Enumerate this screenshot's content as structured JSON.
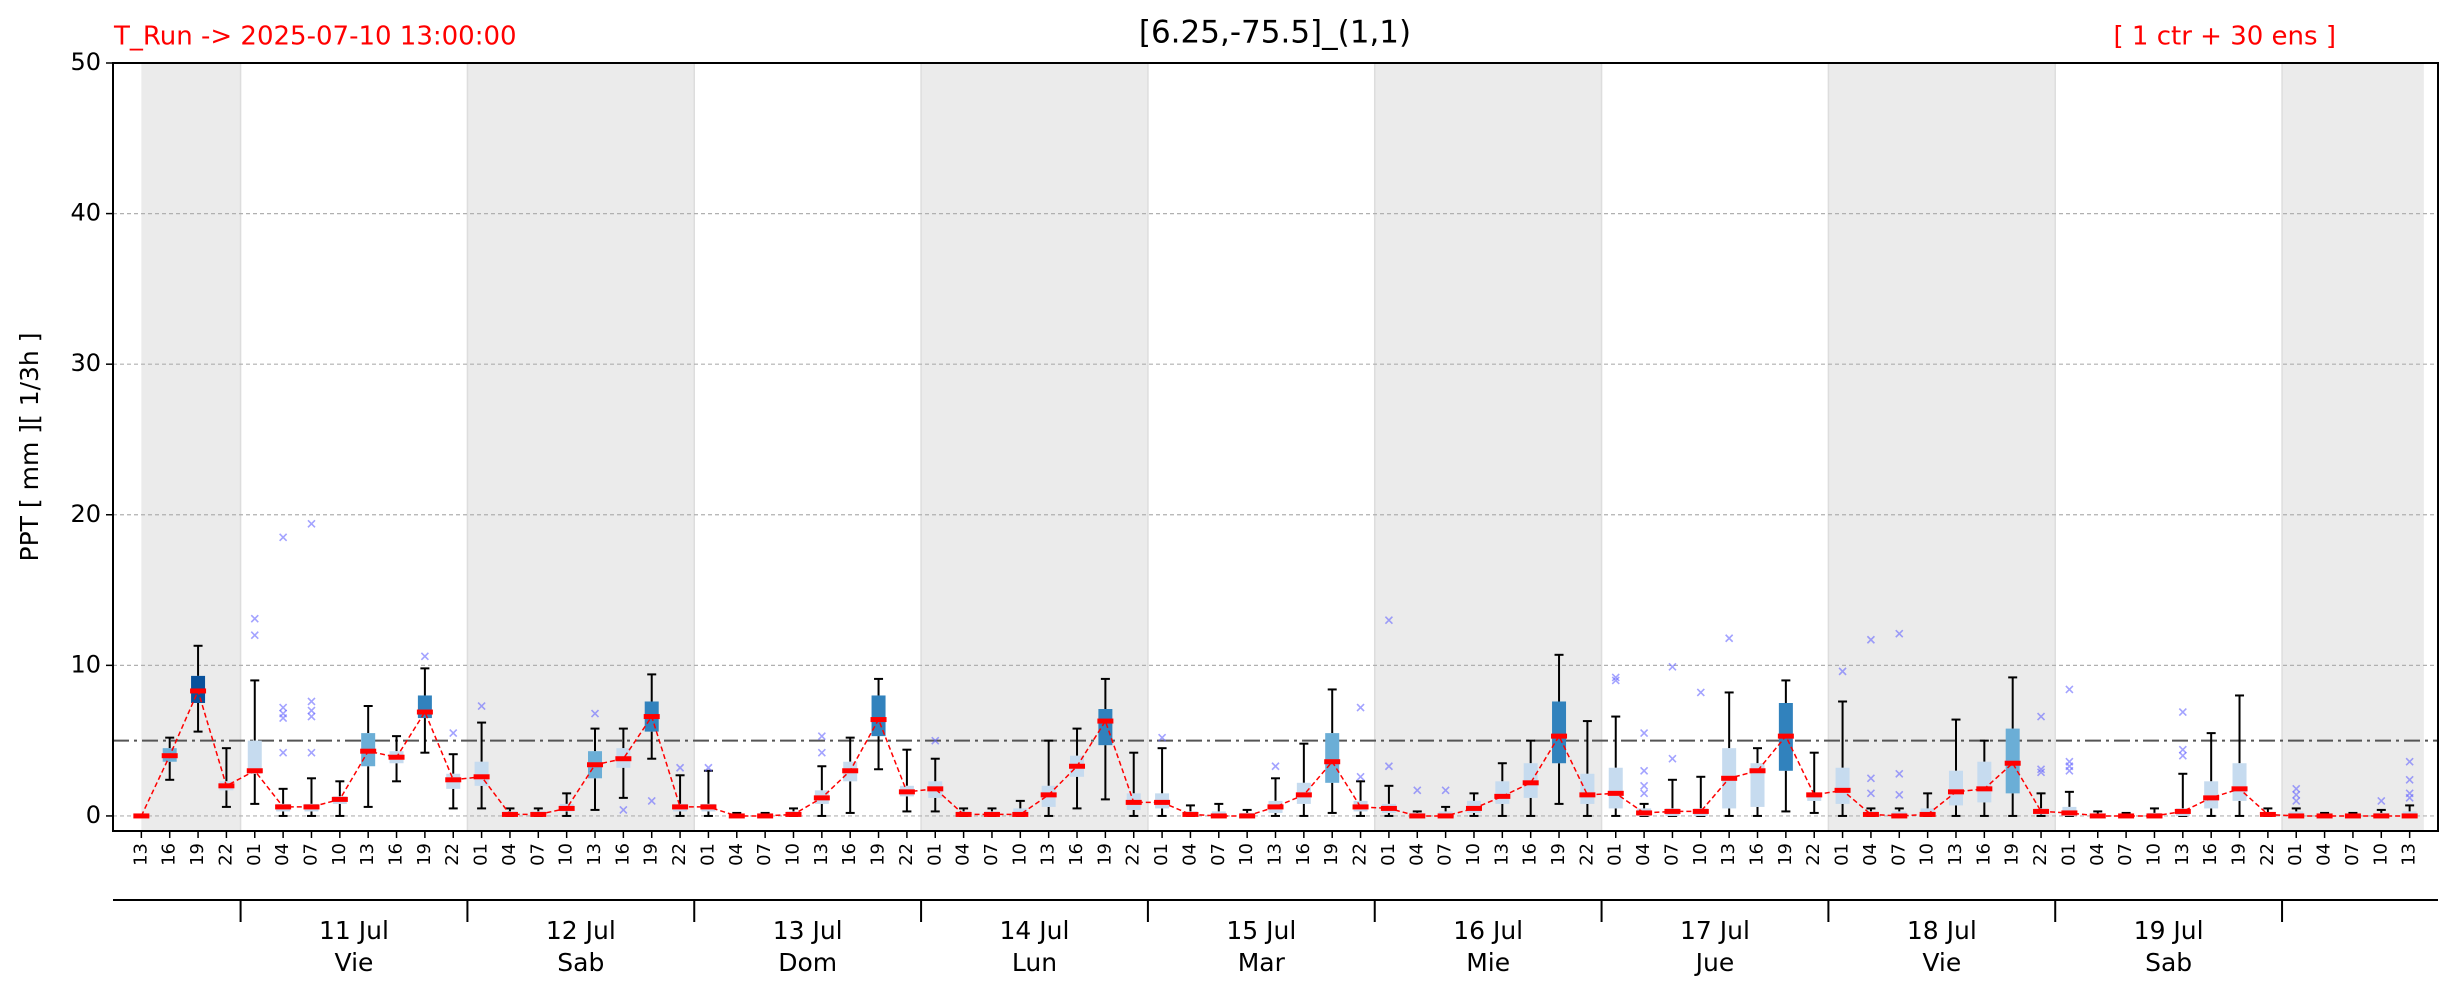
{
  "chart_data": {
    "type": "box",
    "title": "[6.25,-75.5]_(1,1)",
    "run_label": "T_Run -> 2025-07-10  13:00:00",
    "ensemble_label": "[ 1 ctr + 30 ens ]",
    "y_label": "PPT  [ mm ][ 1/3h ]",
    "ylim": [
      -1,
      50
    ],
    "yticks": [
      0,
      10,
      20,
      30,
      40,
      50
    ],
    "grid": true,
    "threshold": 5,
    "shade_alternate_days": true,
    "median_color": "#ff0000",
    "flier_color": "#6666ff",
    "categories": [
      "13",
      "16",
      "19",
      "22",
      "01",
      "04",
      "07",
      "10",
      "13",
      "16",
      "19",
      "22",
      "01",
      "04",
      "07",
      "10",
      "13",
      "16",
      "19",
      "22",
      "01",
      "04",
      "07",
      "10",
      "13",
      "16",
      "19",
      "22",
      "01",
      "04",
      "07",
      "10",
      "13",
      "16",
      "19",
      "22",
      "01",
      "04",
      "07",
      "10",
      "13",
      "16",
      "19",
      "22",
      "01",
      "04",
      "07",
      "10",
      "13",
      "16",
      "19",
      "22",
      "01",
      "04",
      "07",
      "10",
      "13",
      "16",
      "19",
      "22",
      "01",
      "04",
      "07",
      "10",
      "13",
      "16",
      "19",
      "22",
      "01",
      "04",
      "07",
      "10",
      "13",
      "16",
      "19",
      "22",
      "01",
      "04",
      "07",
      "10",
      "13"
    ],
    "day_labels": [
      null,
      {
        "date": "11 Jul",
        "weekday": "Vie"
      },
      {
        "date": "12 Jul",
        "weekday": "Sab"
      },
      {
        "date": "13 Jul",
        "weekday": "Dom"
      },
      {
        "date": "14 Jul",
        "weekday": "Lun"
      },
      {
        "date": "15 Jul",
        "weekday": "Mar"
      },
      {
        "date": "16 Jul",
        "weekday": "Mie"
      },
      {
        "date": "17 Jul",
        "weekday": "Jue"
      },
      {
        "date": "18 Jul",
        "weekday": "Vie"
      },
      {
        "date": "19 Jul",
        "weekday": "Sab"
      },
      null
    ],
    "boxes": [
      {
        "whislo": 0,
        "q1": 0,
        "med": 0,
        "q3": 0,
        "whishi": 0,
        "fliers": [],
        "color": "#c6dbef"
      },
      {
        "whislo": 2.4,
        "q1": 3.6,
        "med": 4,
        "q3": 4.5,
        "whishi": 5.2,
        "fliers": [],
        "color": "#6baed6"
      },
      {
        "whislo": 5.6,
        "q1": 7.5,
        "med": 8.3,
        "q3": 9.3,
        "whishi": 11.3,
        "fliers": [],
        "color": "#08519c"
      },
      {
        "whislo": 0.6,
        "q1": 1.7,
        "med": 2,
        "q3": 2.3,
        "whishi": 4.5,
        "fliers": [],
        "color": "#c6dbef"
      },
      {
        "whislo": 0.8,
        "q1": 2.8,
        "med": 3,
        "q3": 5,
        "whishi": 9,
        "fliers": [
          13.1,
          12
        ],
        "color": "#c6dbef"
      },
      {
        "whislo": 0,
        "q1": 0.3,
        "med": 0.6,
        "q3": 0.8,
        "whishi": 1.8,
        "fliers": [
          18.5,
          7.2,
          6.8,
          6.5,
          4.2
        ],
        "color": "#c6dbef"
      },
      {
        "whislo": 0,
        "q1": 0.3,
        "med": 0.6,
        "q3": 0.8,
        "whishi": 2.5,
        "fliers": [
          19.4,
          7.6,
          7,
          6.6,
          4.2
        ],
        "color": "#c6dbef"
      },
      {
        "whislo": 0,
        "q1": 0.8,
        "med": 1.1,
        "q3": 1.3,
        "whishi": 2.3,
        "fliers": [],
        "color": "#c6dbef"
      },
      {
        "whislo": 0.6,
        "q1": 3.3,
        "med": 4.3,
        "q3": 5.5,
        "whishi": 7.3,
        "fliers": [],
        "color": "#6baed6"
      },
      {
        "whislo": 2.3,
        "q1": 3.5,
        "med": 3.9,
        "q3": 4.3,
        "whishi": 5.3,
        "fliers": [],
        "color": "#c6dbef"
      },
      {
        "whislo": 4.2,
        "q1": 6.5,
        "med": 6.9,
        "q3": 8,
        "whishi": 9.8,
        "fliers": [
          10.6
        ],
        "color": "#3182bd"
      },
      {
        "whislo": 0.5,
        "q1": 1.8,
        "med": 2.4,
        "q3": 2.8,
        "whishi": 4.1,
        "fliers": [
          5.5
        ],
        "color": "#c6dbef"
      },
      {
        "whislo": 0.5,
        "q1": 2,
        "med": 2.6,
        "q3": 3.6,
        "whishi": 6.2,
        "fliers": [
          7.3
        ],
        "color": "#c6dbef"
      },
      {
        "whislo": 0,
        "q1": 0,
        "med": 0.1,
        "q3": 0.3,
        "whishi": 0.5,
        "fliers": [],
        "color": "#c6dbef"
      },
      {
        "whislo": 0,
        "q1": 0,
        "med": 0.1,
        "q3": 0.3,
        "whishi": 0.5,
        "fliers": [],
        "color": "#c6dbef"
      },
      {
        "whislo": 0,
        "q1": 0.3,
        "med": 0.5,
        "q3": 0.8,
        "whishi": 1.5,
        "fliers": [],
        "color": "#c6dbef"
      },
      {
        "whislo": 0.4,
        "q1": 2.5,
        "med": 3.4,
        "q3": 4.3,
        "whishi": 5.8,
        "fliers": [
          6.8
        ],
        "color": "#6baed6"
      },
      {
        "whislo": 1.2,
        "q1": 3.2,
        "med": 3.8,
        "q3": 4.5,
        "whishi": 5.8,
        "fliers": [
          0.4
        ],
        "color": "#c6dbef"
      },
      {
        "whislo": 3.8,
        "q1": 5.6,
        "med": 6.6,
        "q3": 7.6,
        "whishi": 9.4,
        "fliers": [
          1
        ],
        "color": "#3182bd"
      },
      {
        "whislo": 0,
        "q1": 0.3,
        "med": 0.6,
        "q3": 0.8,
        "whishi": 2.7,
        "fliers": [
          3.2
        ],
        "color": "#c6dbef"
      },
      {
        "whislo": 0,
        "q1": 0.3,
        "med": 0.6,
        "q3": 0.8,
        "whishi": 3,
        "fliers": [
          3.2
        ],
        "color": "#c6dbef"
      },
      {
        "whislo": 0,
        "q1": 0,
        "med": 0,
        "q3": 0.1,
        "whishi": 0.2,
        "fliers": [],
        "color": "#c6dbef"
      },
      {
        "whislo": 0,
        "q1": 0,
        "med": 0,
        "q3": 0.1,
        "whishi": 0.2,
        "fliers": [],
        "color": "#c6dbef"
      },
      {
        "whislo": 0,
        "q1": 0,
        "med": 0.1,
        "q3": 0.3,
        "whishi": 0.5,
        "fliers": [],
        "color": "#c6dbef"
      },
      {
        "whislo": 0,
        "q1": 0.8,
        "med": 1.2,
        "q3": 1.7,
        "whishi": 3.3,
        "fliers": [
          5.3,
          4.2
        ],
        "color": "#c6dbef"
      },
      {
        "whislo": 0.2,
        "q1": 2.3,
        "med": 3,
        "q3": 3.6,
        "whishi": 5.2,
        "fliers": [],
        "color": "#c6dbef"
      },
      {
        "whislo": 3.1,
        "q1": 5.3,
        "med": 6.4,
        "q3": 8,
        "whishi": 9.1,
        "fliers": [],
        "color": "#3182bd"
      },
      {
        "whislo": 0.3,
        "q1": 1.3,
        "med": 1.6,
        "q3": 2,
        "whishi": 4.4,
        "fliers": [],
        "color": "#c6dbef"
      },
      {
        "whislo": 0.3,
        "q1": 1.2,
        "med": 1.8,
        "q3": 2.3,
        "whishi": 3.8,
        "fliers": [
          5
        ],
        "color": "#c6dbef"
      },
      {
        "whislo": 0,
        "q1": 0,
        "med": 0.1,
        "q3": 0.3,
        "whishi": 0.5,
        "fliers": [],
        "color": "#c6dbef"
      },
      {
        "whislo": 0,
        "q1": 0,
        "med": 0.1,
        "q3": 0.3,
        "whishi": 0.5,
        "fliers": [],
        "color": "#c6dbef"
      },
      {
        "whislo": 0,
        "q1": 0,
        "med": 0.1,
        "q3": 0.5,
        "whishi": 1,
        "fliers": [],
        "color": "#c6dbef"
      },
      {
        "whislo": 0,
        "q1": 0.6,
        "med": 1.4,
        "q3": 2,
        "whishi": 5,
        "fliers": [],
        "color": "#c6dbef"
      },
      {
        "whislo": 0.5,
        "q1": 2.6,
        "med": 3.3,
        "q3": 4,
        "whishi": 5.8,
        "fliers": [],
        "color": "#c6dbef"
      },
      {
        "whislo": 1.1,
        "q1": 4.7,
        "med": 6.3,
        "q3": 7.1,
        "whishi": 9.1,
        "fliers": [],
        "color": "#3182bd"
      },
      {
        "whislo": 0,
        "q1": 0.4,
        "med": 0.9,
        "q3": 1.5,
        "whishi": 4.2,
        "fliers": [],
        "color": "#c6dbef"
      },
      {
        "whislo": 0,
        "q1": 0.5,
        "med": 0.9,
        "q3": 1.5,
        "whishi": 4.5,
        "fliers": [
          5.2
        ],
        "color": "#c6dbef"
      },
      {
        "whislo": 0,
        "q1": 0,
        "med": 0.1,
        "q3": 0.3,
        "whishi": 0.7,
        "fliers": [],
        "color": "#c6dbef"
      },
      {
        "whislo": 0,
        "q1": 0,
        "med": 0,
        "q3": 0.3,
        "whishi": 0.8,
        "fliers": [],
        "color": "#c6dbef"
      },
      {
        "whislo": 0,
        "q1": 0,
        "med": 0,
        "q3": 0.2,
        "whishi": 0.4,
        "fliers": [],
        "color": "#c6dbef"
      },
      {
        "whislo": 0,
        "q1": 0.2,
        "med": 0.6,
        "q3": 1,
        "whishi": 2.5,
        "fliers": [
          3.3
        ],
        "color": "#c6dbef"
      },
      {
        "whislo": 0,
        "q1": 0.8,
        "med": 1.4,
        "q3": 2.2,
        "whishi": 4.8,
        "fliers": [],
        "color": "#c6dbef"
      },
      {
        "whislo": 0.2,
        "q1": 2.2,
        "med": 3.6,
        "q3": 5.5,
        "whishi": 8.4,
        "fliers": [],
        "color": "#6baed6"
      },
      {
        "whislo": 0,
        "q1": 0.3,
        "med": 0.6,
        "q3": 1,
        "whishi": 2.3,
        "fliers": [
          7.2,
          2.6
        ],
        "color": "#c6dbef"
      },
      {
        "whislo": 0,
        "q1": 0.2,
        "med": 0.5,
        "q3": 0.8,
        "whishi": 2,
        "fliers": [
          13,
          3.3
        ],
        "color": "#c6dbef"
      },
      {
        "whislo": 0,
        "q1": 0,
        "med": 0,
        "q3": 0.2,
        "whishi": 0.3,
        "fliers": [
          1.7
        ],
        "color": "#c6dbef"
      },
      {
        "whislo": 0,
        "q1": 0,
        "med": 0,
        "q3": 0.3,
        "whishi": 0.6,
        "fliers": [
          1.7
        ],
        "color": "#c6dbef"
      },
      {
        "whislo": 0,
        "q1": 0.2,
        "med": 0.5,
        "q3": 1,
        "whishi": 1.5,
        "fliers": [],
        "color": "#c6dbef"
      },
      {
        "whislo": 0,
        "q1": 0.8,
        "med": 1.3,
        "q3": 2.3,
        "whishi": 3.5,
        "fliers": [],
        "color": "#c6dbef"
      },
      {
        "whislo": 0,
        "q1": 1.2,
        "med": 2.2,
        "q3": 3.5,
        "whishi": 5,
        "fliers": [],
        "color": "#c6dbef"
      },
      {
        "whislo": 0.8,
        "q1": 3.5,
        "med": 5.3,
        "q3": 7.6,
        "whishi": 10.7,
        "fliers": [],
        "color": "#3182bd"
      },
      {
        "whislo": 0,
        "q1": 0.8,
        "med": 1.4,
        "q3": 2.8,
        "whishi": 6.3,
        "fliers": [],
        "color": "#c6dbef"
      },
      {
        "whislo": 0,
        "q1": 0.5,
        "med": 1.5,
        "q3": 3.2,
        "whishi": 6.6,
        "fliers": [
          9.2,
          9
        ],
        "color": "#c6dbef"
      },
      {
        "whislo": 0,
        "q1": 0,
        "med": 0.2,
        "q3": 0.5,
        "whishi": 0.8,
        "fliers": [
          5.5,
          3,
          2,
          1.5
        ],
        "color": "#c6dbef"
      },
      {
        "whislo": 0,
        "q1": 0,
        "med": 0.3,
        "q3": 0.5,
        "whishi": 2.4,
        "fliers": [
          9.9,
          3.8
        ],
        "color": "#c6dbef"
      },
      {
        "whislo": 0,
        "q1": 0,
        "med": 0.3,
        "q3": 0.5,
        "whishi": 2.6,
        "fliers": [
          8.2
        ],
        "color": "#c6dbef"
      },
      {
        "whislo": 0,
        "q1": 0.5,
        "med": 2.5,
        "q3": 4.5,
        "whishi": 8.2,
        "fliers": [
          11.8
        ],
        "color": "#c6dbef"
      },
      {
        "whislo": 0,
        "q1": 0.6,
        "med": 3,
        "q3": 3.5,
        "whishi": 4.5,
        "fliers": [],
        "color": "#c6dbef"
      },
      {
        "whislo": 0.3,
        "q1": 3,
        "med": 5.3,
        "q3": 7.5,
        "whishi": 9,
        "fliers": [],
        "color": "#3182bd"
      },
      {
        "whislo": 0.2,
        "q1": 1,
        "med": 1.4,
        "q3": 1.5,
        "whishi": 4.2,
        "fliers": [],
        "color": "#c6dbef"
      },
      {
        "whislo": 0,
        "q1": 0.8,
        "med": 1.7,
        "q3": 3.2,
        "whishi": 7.6,
        "fliers": [
          9.6
        ],
        "color": "#c6dbef"
      },
      {
        "whislo": 0,
        "q1": 0,
        "med": 0.1,
        "q3": 0.3,
        "whishi": 0.5,
        "fliers": [
          11.7,
          2.5,
          1.5
        ],
        "color": "#c6dbef"
      },
      {
        "whislo": 0,
        "q1": 0,
        "med": 0,
        "q3": 0.3,
        "whishi": 0.5,
        "fliers": [
          12.1,
          2.8,
          1.4
        ],
        "color": "#c6dbef"
      },
      {
        "whislo": 0,
        "q1": 0,
        "med": 0.1,
        "q3": 0.5,
        "whishi": 1.5,
        "fliers": [],
        "color": "#c6dbef"
      },
      {
        "whislo": 0,
        "q1": 0.7,
        "med": 1.6,
        "q3": 3,
        "whishi": 6.4,
        "fliers": [],
        "color": "#c6dbef"
      },
      {
        "whislo": 0,
        "q1": 0.9,
        "med": 1.8,
        "q3": 3.6,
        "whishi": 5,
        "fliers": [],
        "color": "#c6dbef"
      },
      {
        "whislo": 0,
        "q1": 1.5,
        "med": 3.5,
        "q3": 5.8,
        "whishi": 9.2,
        "fliers": [],
        "color": "#6baed6"
      },
      {
        "whislo": 0,
        "q1": 0.1,
        "med": 0.3,
        "q3": 0.5,
        "whishi": 1.5,
        "fliers": [
          6.6,
          3.1,
          2.9
        ],
        "color": "#c6dbef"
      },
      {
        "whislo": 0,
        "q1": 0,
        "med": 0.2,
        "q3": 0.6,
        "whishi": 1.6,
        "fliers": [
          8.4,
          3.6,
          3.3,
          3
        ],
        "color": "#c6dbef"
      },
      {
        "whislo": 0,
        "q1": 0,
        "med": 0,
        "q3": 0.1,
        "whishi": 0.3,
        "fliers": [],
        "color": "#c6dbef"
      },
      {
        "whislo": 0,
        "q1": 0,
        "med": 0,
        "q3": 0.1,
        "whishi": 0.2,
        "fliers": [],
        "color": "#c6dbef"
      },
      {
        "whislo": 0,
        "q1": 0,
        "med": 0,
        "q3": 0.2,
        "whishi": 0.5,
        "fliers": [],
        "color": "#c6dbef"
      },
      {
        "whislo": 0,
        "q1": 0,
        "med": 0.3,
        "q3": 0.5,
        "whishi": 2.8,
        "fliers": [
          6.9,
          4.4,
          4
        ],
        "color": "#c6dbef"
      },
      {
        "whislo": 0,
        "q1": 0.5,
        "med": 1.2,
        "q3": 2.3,
        "whishi": 5.5,
        "fliers": [],
        "color": "#c6dbef"
      },
      {
        "whislo": 0,
        "q1": 1,
        "med": 1.8,
        "q3": 3.5,
        "whishi": 8,
        "fliers": [],
        "color": "#c6dbef"
      },
      {
        "whislo": 0,
        "q1": 0,
        "med": 0.1,
        "q3": 0.2,
        "whishi": 0.5,
        "fliers": [],
        "color": "#c6dbef"
      },
      {
        "whislo": 0,
        "q1": 0,
        "med": 0,
        "q3": 0.3,
        "whishi": 0.5,
        "fliers": [
          1.8,
          1.4,
          1
        ],
        "color": "#c6dbef"
      },
      {
        "whislo": 0,
        "q1": 0,
        "med": 0,
        "q3": 0.1,
        "whishi": 0.2,
        "fliers": [],
        "color": "#c6dbef"
      },
      {
        "whislo": 0,
        "q1": 0,
        "med": 0,
        "q3": 0.1,
        "whishi": 0.2,
        "fliers": [],
        "color": "#c6dbef"
      },
      {
        "whislo": 0,
        "q1": 0,
        "med": 0,
        "q3": 0.2,
        "whishi": 0.4,
        "fliers": [
          1
        ],
        "color": "#c6dbef"
      },
      {
        "whislo": 0,
        "q1": 0,
        "med": 0,
        "q3": 0.3,
        "whishi": 0.7,
        "fliers": [
          3.6,
          2.4,
          1.5,
          1.2
        ],
        "color": "#c6dbef"
      }
    ]
  }
}
